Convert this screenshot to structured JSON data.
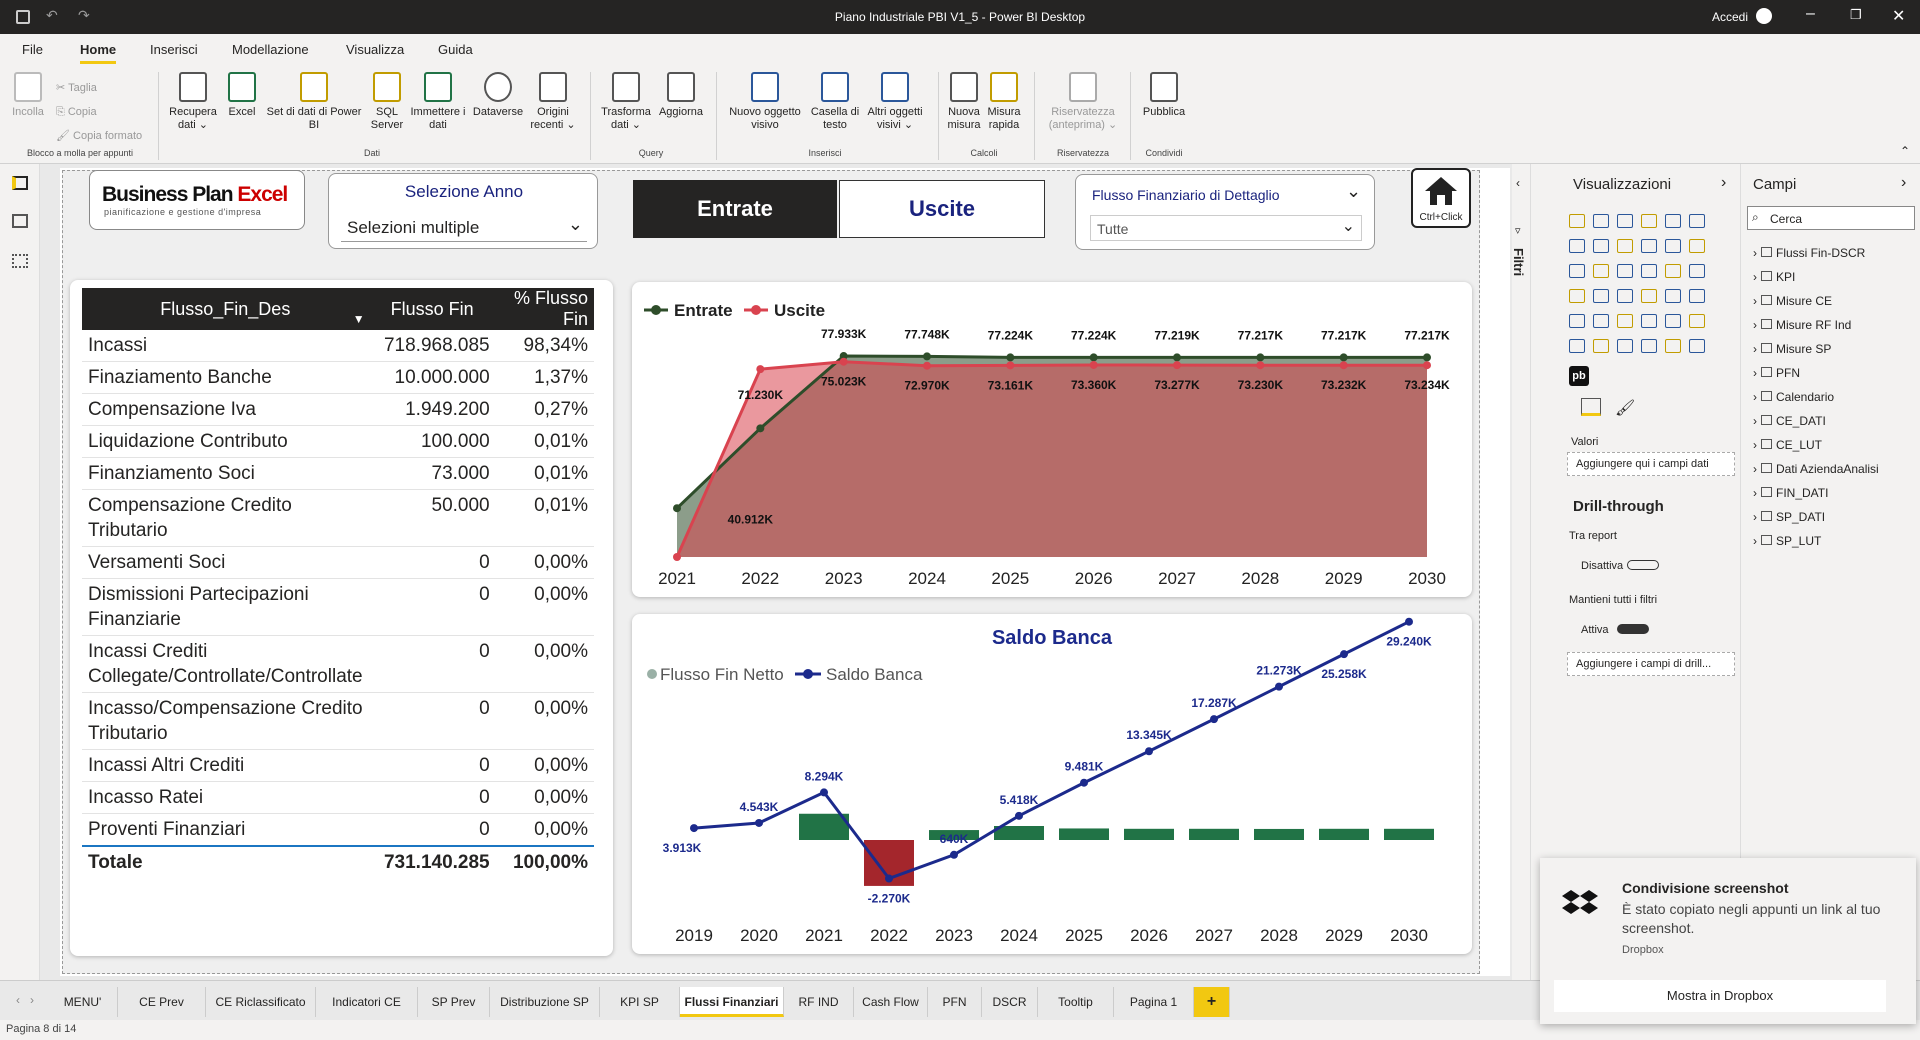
{
  "window": {
    "title": "Piano Industriale PBI V1_5 - Power BI Desktop",
    "signin": "Accedi"
  },
  "menu": [
    "File",
    "Home",
    "Inserisci",
    "Modellazione",
    "Visualizza",
    "Guida"
  ],
  "ribbon": {
    "clipboard": {
      "paste": "Incolla",
      "cut": "Taglia",
      "copy": "Copia",
      "format": "Copia formato",
      "group": "Blocco a molla per appunti"
    },
    "data": [
      {
        "l1": "Recupera",
        "l2": "dati ⌄"
      },
      {
        "l1": "Excel",
        "l2": ""
      },
      {
        "l1": "Set di dati di Power",
        "l2": "BI"
      },
      {
        "l1": "SQL",
        "l2": "Server"
      },
      {
        "l1": "Immettere i",
        "l2": "dati"
      },
      {
        "l1": "Dataverse",
        "l2": ""
      },
      {
        "l1": "Origini",
        "l2": "recenti ⌄"
      }
    ],
    "data_group": "Dati",
    "query": [
      {
        "l1": "Trasforma",
        "l2": "dati ⌄"
      },
      {
        "l1": "Aggiorna",
        "l2": ""
      }
    ],
    "query_group": "Query",
    "insert": [
      {
        "l1": "Nuovo oggetto",
        "l2": "visivo"
      },
      {
        "l1": "Casella di",
        "l2": "testo"
      },
      {
        "l1": "Altri oggetti",
        "l2": "visivi ⌄"
      }
    ],
    "insert_group": "Inserisci",
    "calc": [
      {
        "l1": "Nuova",
        "l2": "misura"
      },
      {
        "l1": "Misura",
        "l2": "rapida"
      }
    ],
    "calc_group": "Calcoli",
    "privacy": {
      "l1": "Riservatezza",
      "l2": "(anteprima) ⌄",
      "group": "Riservatezza"
    },
    "share": {
      "l1": "Pubblica",
      "group": "Condividi"
    }
  },
  "report": {
    "logo": {
      "brand1": "Business Plan ",
      "brand2": "Excel",
      "tagline": "pianificazione e gestione d'impresa"
    },
    "slicer_year": {
      "title": "Selezione Anno",
      "value": "Selezioni multiple"
    },
    "btn_in": "Entrate",
    "btn_out": "Uscite",
    "slicer_flow": {
      "title": "Flusso Finanziario di Dettaglio",
      "value": "Tutte"
    },
    "home": "Ctrl+Click",
    "table": {
      "headers": [
        "Flusso_Fin_Des",
        "Flusso Fin",
        "% Flusso Fin"
      ],
      "rows": [
        [
          "Incassi",
          "718.968.085",
          "98,34%"
        ],
        [
          "Finaziamento Banche",
          "10.000.000",
          "1,37%"
        ],
        [
          "Compensazione Iva",
          "1.949.200",
          "0,27%"
        ],
        [
          "Liquidazione Contributo",
          "100.000",
          "0,01%"
        ],
        [
          "Finanziamento Soci",
          "73.000",
          "0,01%"
        ],
        [
          "Compensazione Credito Tributario",
          "50.000",
          "0,01%"
        ],
        [
          "Versamenti Soci",
          "0",
          "0,00%"
        ],
        [
          "Dismissioni Partecipazioni Finanziarie",
          "0",
          "0,00%"
        ],
        [
          "Incassi Crediti Collegate/Controllate/Controllate",
          "0",
          "0,00%"
        ],
        [
          "Incasso/Compensazione Credito Tributario",
          "0",
          "0,00%"
        ],
        [
          "Incassi Altri Crediti",
          "0",
          "0,00%"
        ],
        [
          "Incasso Ratei",
          "0",
          "0,00%"
        ],
        [
          "Proventi Finanziari",
          "0",
          "0,00%"
        ]
      ],
      "total": [
        "Totale",
        "731.140.285",
        "100,00%"
      ]
    }
  },
  "chart_data": [
    {
      "type": "area",
      "x": [
        "2021",
        "2022",
        "2023",
        "2024",
        "2025",
        "2026",
        "2027",
        "2028",
        "2029",
        "2030"
      ],
      "series": [
        {
          "name": "Entrate",
          "color": "#2e4d2a",
          "values": [
            0,
            40912,
            77933,
            77748,
            77224,
            77224,
            77219,
            77217,
            77217,
            77217
          ]
        },
        {
          "name": "Uscite",
          "color": "#d9434f",
          "values": [
            -25000,
            71230,
            75023,
            72970,
            73161,
            73360,
            73277,
            73230,
            73232,
            73234
          ]
        }
      ],
      "labels_in": [
        "40.912K",
        "77.933K",
        "77.748K",
        "77.224K",
        "77.224K",
        "77.219K",
        "77.217K",
        "77.217K",
        "77.217K"
      ],
      "labels_out": [
        "71.230K",
        "75.023K",
        "72.970K",
        "73.161K",
        "73.360K",
        "73.277K",
        "73.230K",
        "73.232K",
        "73.234K"
      ]
    },
    {
      "type": "bar",
      "title": "Saldo Banca",
      "x": [
        "2019",
        "2020",
        "2021",
        "2022",
        "2023",
        "2024",
        "2025",
        "2026",
        "2027",
        "2028",
        "2029",
        "2030"
      ],
      "series": [
        {
          "name": "Flusso Fin Netto",
          "color": "#217346",
          "neg_color": "#a4262c",
          "values": [
            0,
            0,
            3750,
            -6560,
            1420,
            2000,
            1650,
            1600,
            1600,
            1580,
            1600,
            1600
          ]
        },
        {
          "name": "Saldo Banca",
          "color": "#1c2a8c",
          "values": [
            3913,
            4543,
            8294,
            -2270,
            640,
            5418,
            9481,
            13345,
            17287,
            21273,
            25258,
            29240
          ]
        }
      ],
      "labels": [
        "3.913K",
        "4.543K",
        "8.294K",
        "-2.270K",
        "640K",
        "5.418K",
        "9.481K",
        "13.345K",
        "17.287K",
        "21.273K",
        "25.258K",
        "29.240K"
      ]
    }
  ],
  "pane": {
    "filters": "Filtri",
    "vis_title": "Visualizzazioni",
    "values": "Valori",
    "add_fields": "Aggiungere qui i campi dati",
    "drill": "Drill-through",
    "cross": "Tra report",
    "off": "Disattiva",
    "keep": "Mantieni tutti i filtri",
    "on": "Attiva",
    "add_drill": "Aggiungere i campi di drill...",
    "fields_title": "Campi",
    "search": "Cerca",
    "fields": [
      "Flussi Fin-DSCR",
      "KPI",
      "Misure CE",
      "Misure RF Ind",
      "Misure SP",
      "PFN",
      "Calendario",
      "CE_DATI",
      "CE_LUT",
      "Dati AziendaAnalisi",
      "FIN_DATI",
      "SP_DATI",
      "SP_LUT"
    ]
  },
  "tabs": [
    "MENU'",
    "CE Prev",
    "CE Riclassificato",
    "Indicatori CE",
    "SP Prev",
    "Distribuzione SP",
    "KPI SP",
    "Flussi Finanziari",
    "RF IND",
    "Cash Flow",
    "PFN",
    "DSCR",
    "Tooltip",
    "Pagina 1",
    "+"
  ],
  "status": "Pagina 8 di 14",
  "toast": {
    "title": "Condivisione screenshot",
    "body": "È stato copiato negli appunti un link al tuo screenshot.",
    "source": "Dropbox",
    "action": "Mostra in Dropbox"
  }
}
